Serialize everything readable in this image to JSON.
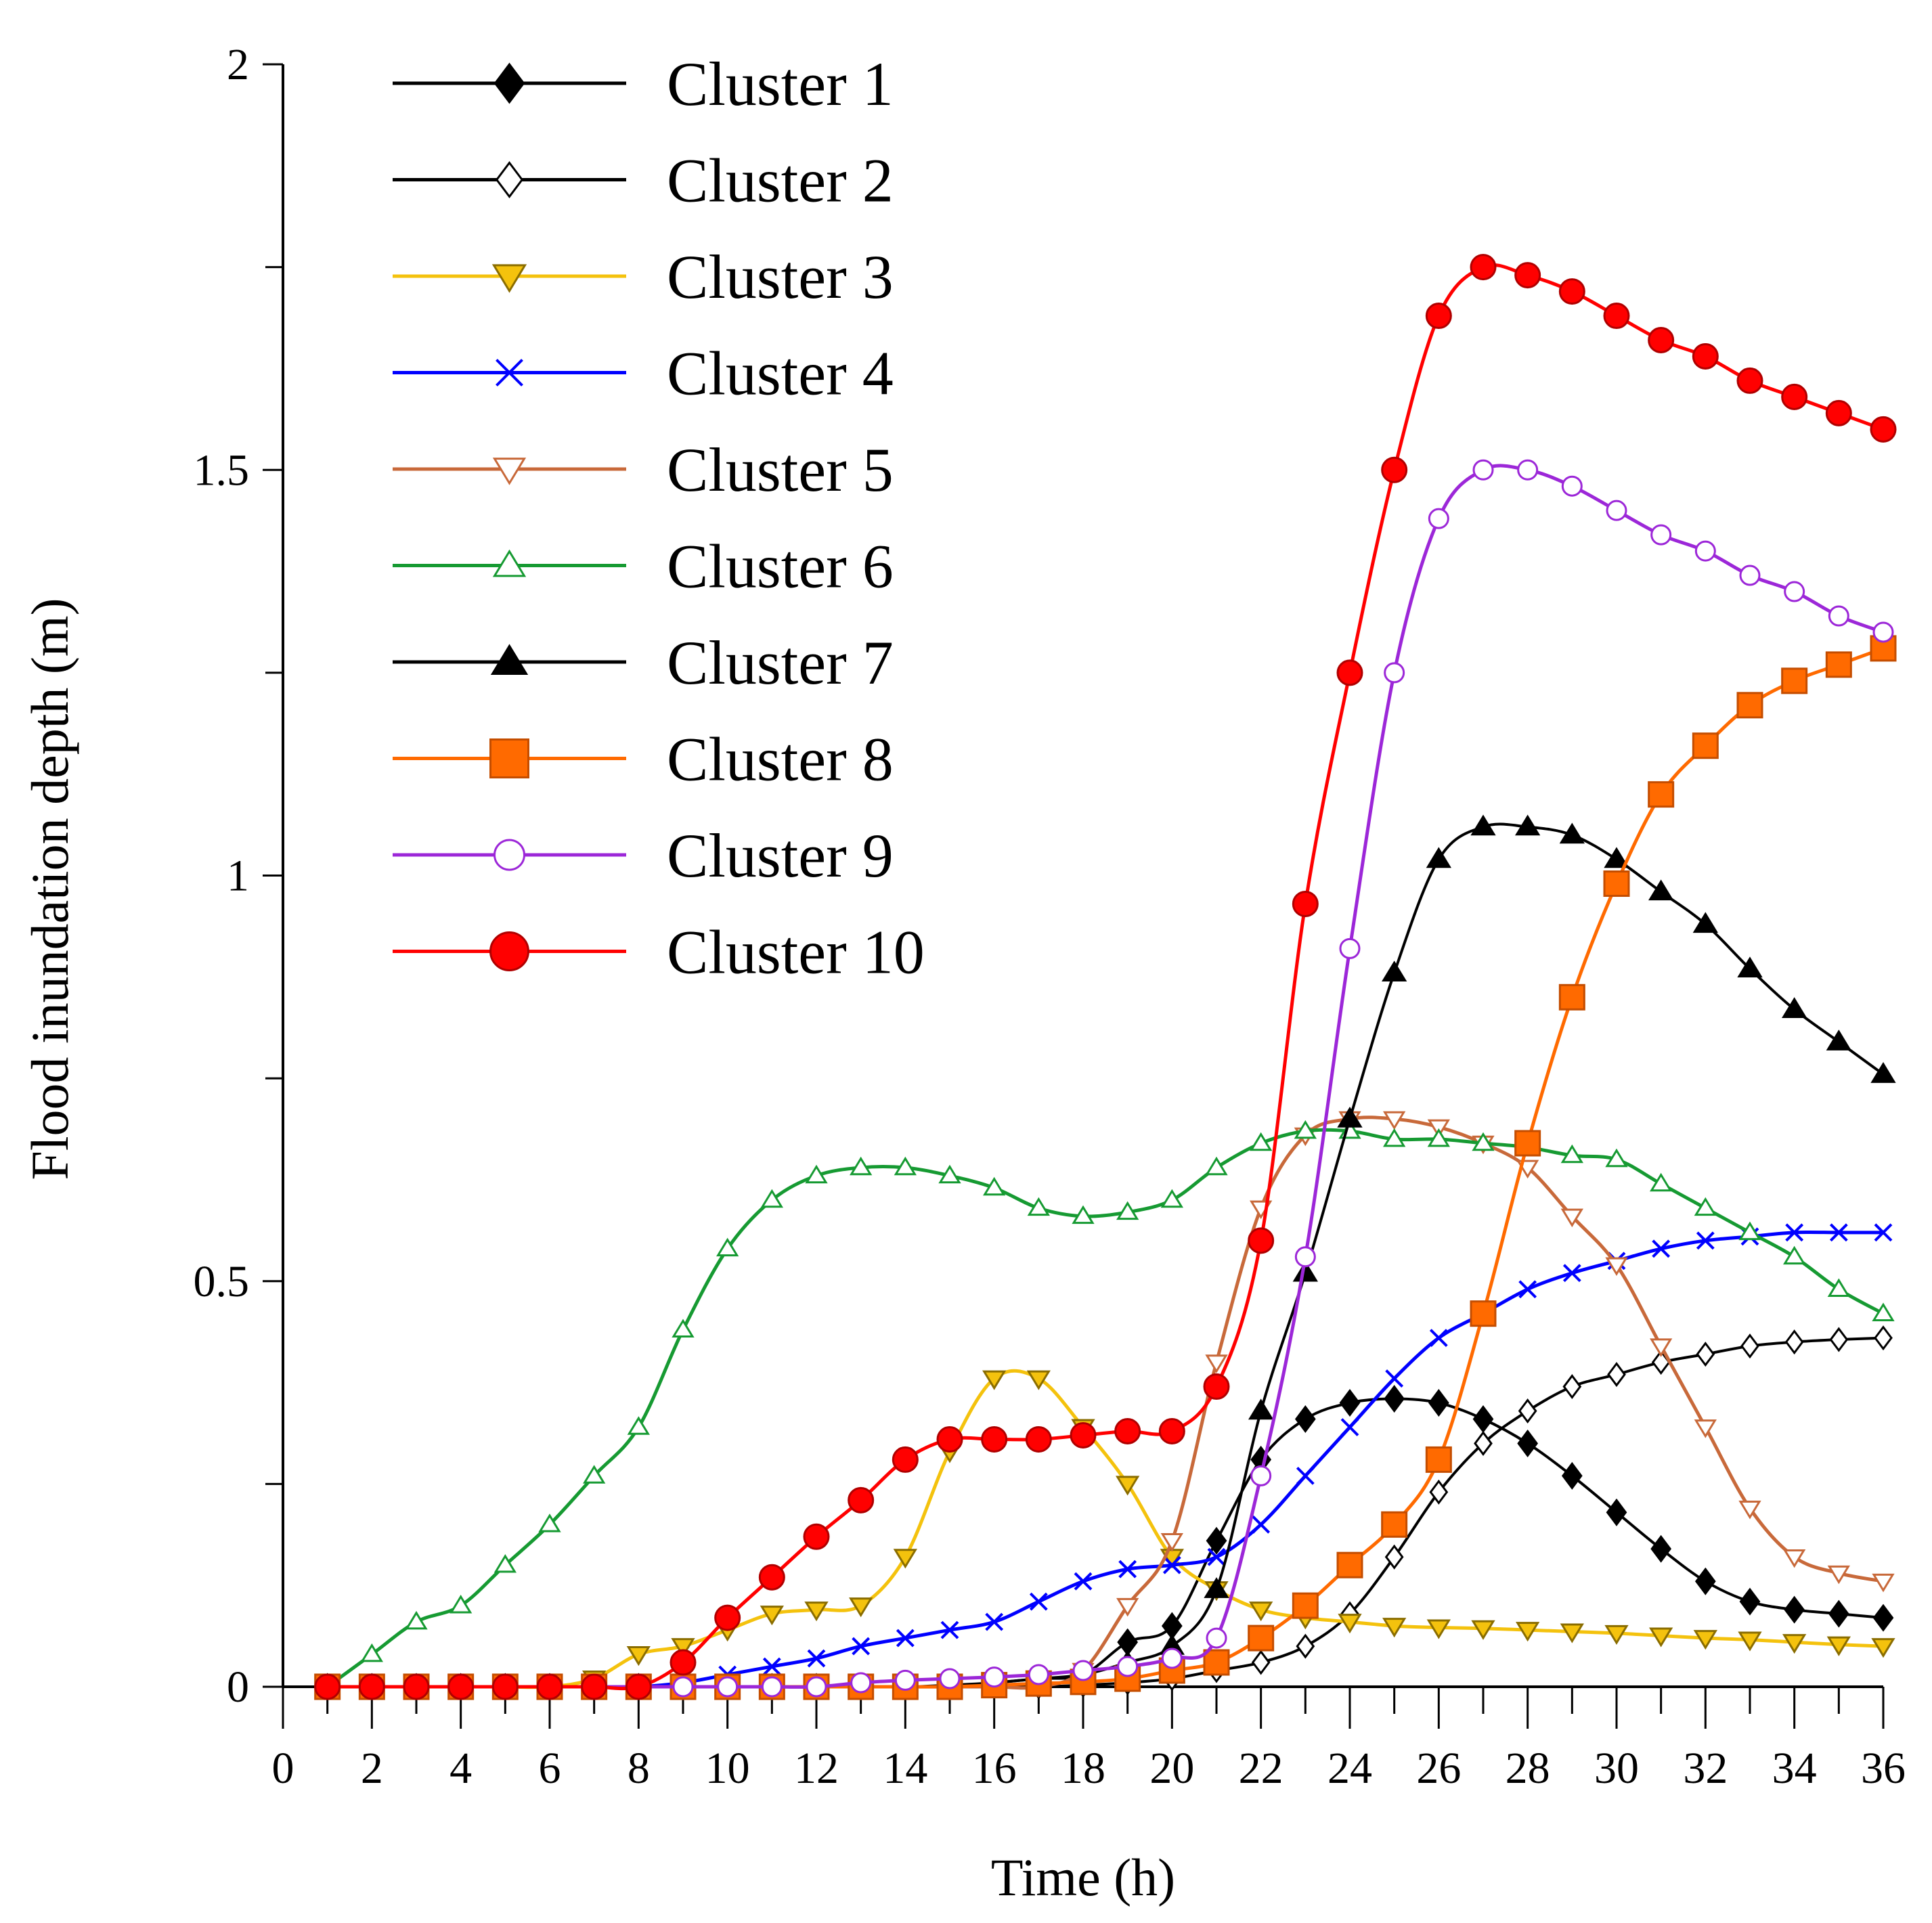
{
  "chart_data": {
    "type": "line",
    "title": "",
    "xlabel": "Time (h)",
    "ylabel": "Flood inundation depth (m)",
    "xlim": [
      0,
      36
    ],
    "ylim": [
      0,
      2
    ],
    "x_ticks": [
      0,
      2,
      4,
      6,
      8,
      10,
      12,
      14,
      16,
      18,
      20,
      22,
      24,
      26,
      28,
      30,
      32,
      34,
      36
    ],
    "y_tick_labels": [
      {
        "value": 0,
        "label": "0"
      },
      {
        "value": 0.5,
        "label": "0.5"
      },
      {
        "value": 1,
        "label": "1"
      },
      {
        "value": 1.5,
        "label": "1.5"
      },
      {
        "value": 2,
        "label": "2"
      }
    ],
    "legend_position": "top-left",
    "grid": false,
    "x": [
      1,
      2,
      3,
      4,
      5,
      6,
      7,
      8,
      9,
      10,
      11,
      12,
      13,
      14,
      15,
      16,
      17,
      18,
      19,
      20,
      21,
      22,
      23,
      24,
      25,
      26,
      27,
      28,
      29,
      30,
      31,
      32,
      33,
      34,
      35,
      36
    ],
    "series": [
      {
        "name": "Cluster 1",
        "color": "#000000",
        "marker": "diamond-filled",
        "values": [
          0,
          0,
          0,
          0,
          0,
          0,
          0,
          0,
          0,
          0,
          0,
          0,
          0,
          0,
          0.002,
          0.005,
          0.01,
          0.015,
          0.055,
          0.075,
          0.18,
          0.28,
          0.33,
          0.35,
          0.355,
          0.35,
          0.33,
          0.3,
          0.26,
          0.215,
          0.17,
          0.13,
          0.105,
          0.095,
          0.09,
          0.085
        ]
      },
      {
        "name": "Cluster 2",
        "color": "#000000",
        "marker": "diamond-open",
        "values": [
          0,
          0,
          0,
          0,
          0,
          0,
          0,
          0,
          0,
          0,
          0,
          0,
          0,
          0,
          0,
          0,
          0,
          0.002,
          0.005,
          0.01,
          0.02,
          0.03,
          0.05,
          0.09,
          0.16,
          0.24,
          0.3,
          0.34,
          0.37,
          0.385,
          0.4,
          0.41,
          0.42,
          0.425,
          0.428,
          0.43
        ]
      },
      {
        "name": "Cluster 3",
        "color": "#f4c20d",
        "marker": "triangle-down-filled",
        "values": [
          0,
          0,
          0,
          0,
          0,
          0,
          0.01,
          0.04,
          0.05,
          0.07,
          0.09,
          0.095,
          0.1,
          0.16,
          0.29,
          0.38,
          0.38,
          0.32,
          0.25,
          0.16,
          0.12,
          0.095,
          0.085,
          0.08,
          0.075,
          0.073,
          0.072,
          0.07,
          0.068,
          0.066,
          0.063,
          0.06,
          0.058,
          0.055,
          0.052,
          0.05
        ]
      },
      {
        "name": "Cluster 4",
        "color": "#0000ff",
        "marker": "x",
        "values": [
          0,
          0,
          0,
          0,
          0,
          0,
          0,
          0,
          0.005,
          0.015,
          0.025,
          0.035,
          0.05,
          0.06,
          0.07,
          0.08,
          0.105,
          0.13,
          0.145,
          0.15,
          0.16,
          0.2,
          0.26,
          0.32,
          0.38,
          0.43,
          0.46,
          0.49,
          0.51,
          0.525,
          0.54,
          0.55,
          0.555,
          0.56,
          0.56,
          0.56
        ]
      },
      {
        "name": "Cluster 5",
        "color": "#c8693a",
        "marker": "triangle-down-open",
        "values": [
          0,
          0,
          0,
          0,
          0,
          0,
          0,
          0,
          0,
          0,
          0,
          0,
          0,
          0,
          0,
          0,
          0,
          0.02,
          0.1,
          0.18,
          0.4,
          0.59,
          0.68,
          0.7,
          0.7,
          0.69,
          0.67,
          0.64,
          0.58,
          0.52,
          0.42,
          0.32,
          0.22,
          0.16,
          0.14,
          0.13
        ]
      },
      {
        "name": "Cluster 6",
        "color": "#169a32",
        "marker": "triangle-up-open",
        "values": [
          0,
          0.04,
          0.08,
          0.1,
          0.15,
          0.2,
          0.26,
          0.32,
          0.44,
          0.54,
          0.6,
          0.63,
          0.64,
          0.64,
          0.63,
          0.615,
          0.59,
          0.58,
          0.585,
          0.6,
          0.64,
          0.67,
          0.685,
          0.685,
          0.675,
          0.675,
          0.67,
          0.665,
          0.655,
          0.65,
          0.62,
          0.59,
          0.56,
          0.53,
          0.49,
          0.46
        ]
      },
      {
        "name": "Cluster 7",
        "color": "#000000",
        "marker": "triangle-up-filled",
        "values": [
          0,
          0,
          0,
          0,
          0,
          0,
          0,
          0,
          0,
          0,
          0,
          0,
          0,
          0,
          0,
          0.005,
          0.01,
          0.015,
          0.03,
          0.05,
          0.12,
          0.34,
          0.51,
          0.7,
          0.88,
          1.02,
          1.06,
          1.06,
          1.05,
          1.02,
          0.98,
          0.94,
          0.885,
          0.835,
          0.795,
          0.755
        ]
      },
      {
        "name": "Cluster 8",
        "color": "#ff6a00",
        "marker": "square-filled",
        "values": [
          0,
          0,
          0,
          0,
          0,
          0,
          0,
          0,
          0,
          0,
          0,
          0,
          0,
          0,
          0,
          0.002,
          0.004,
          0.006,
          0.01,
          0.02,
          0.03,
          0.06,
          0.1,
          0.15,
          0.2,
          0.28,
          0.46,
          0.67,
          0.85,
          0.99,
          1.1,
          1.16,
          1.21,
          1.24,
          1.26,
          1.28
        ]
      },
      {
        "name": "Cluster 9",
        "color": "#9c27d8",
        "marker": "circle-open",
        "values": [
          0,
          0,
          0,
          0,
          0,
          0,
          0,
          0,
          0,
          0,
          0,
          0,
          0.005,
          0.008,
          0.01,
          0.012,
          0.015,
          0.02,
          0.025,
          0.035,
          0.06,
          0.26,
          0.53,
          0.91,
          1.25,
          1.44,
          1.5,
          1.5,
          1.48,
          1.45,
          1.42,
          1.4,
          1.37,
          1.35,
          1.32,
          1.3
        ]
      },
      {
        "name": "Cluster 10",
        "color": "#ff0000",
        "marker": "circle-filled",
        "values": [
          0,
          0,
          0,
          0,
          0,
          0,
          0,
          0,
          0.03,
          0.085,
          0.135,
          0.185,
          0.23,
          0.28,
          0.305,
          0.305,
          0.305,
          0.31,
          0.315,
          0.315,
          0.37,
          0.55,
          0.965,
          1.25,
          1.5,
          1.69,
          1.75,
          1.74,
          1.72,
          1.69,
          1.66,
          1.64,
          1.61,
          1.59,
          1.57,
          1.55
        ]
      }
    ]
  }
}
